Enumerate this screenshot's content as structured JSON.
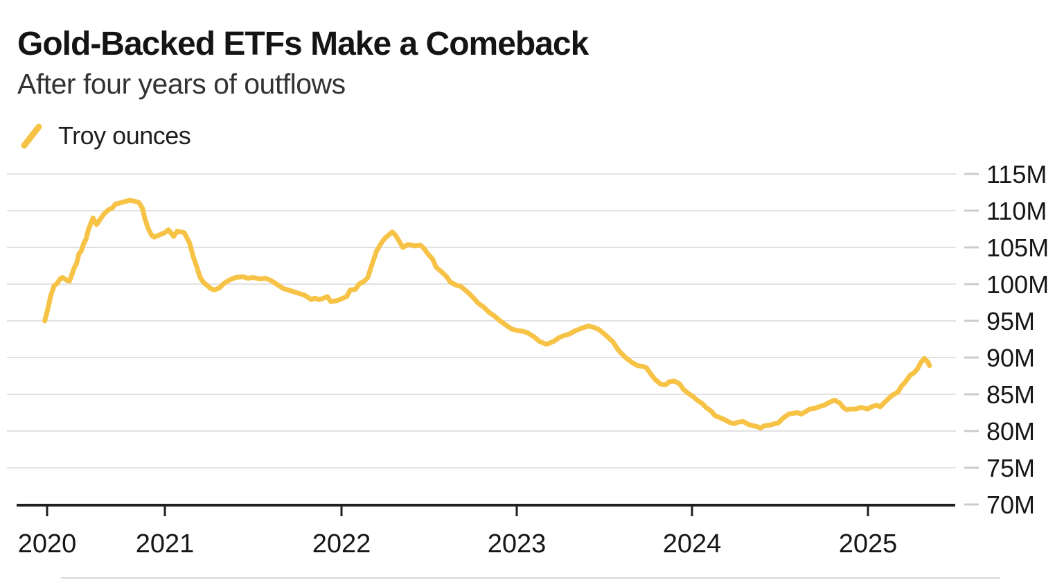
{
  "header": {
    "title": "Gold-Backed ETFs Make a Comeback",
    "subtitle": "After four years of outflows"
  },
  "legend": {
    "label": "Troy ounces",
    "swatch_color": "#F7C347"
  },
  "colors": {
    "line": "#F7C347",
    "grid": "#E2E2E2",
    "tick_dash": "#CCCCCC",
    "axis": "#1F1F1F",
    "text": "#161616"
  },
  "chart_data": {
    "type": "line",
    "title": "Gold-Backed ETFs Make a Comeback",
    "subtitle": "After four years of outflows",
    "xlabel": "",
    "ylabel": "",
    "y_unit_suffix": "M",
    "ylim": [
      70,
      115
    ],
    "y_ticks": [
      70,
      75,
      80,
      85,
      90,
      95,
      100,
      105,
      110,
      115
    ],
    "x_ticks": [
      2020,
      2021,
      2022,
      2023,
      2024,
      2025
    ],
    "grid": "horizontal",
    "legend_position": "top-left",
    "series": [
      {
        "name": "Troy ounces",
        "color": "#F7C347",
        "points": [
          [
            2019.98,
            95.0
          ],
          [
            2020.01,
            96.9
          ],
          [
            2020.03,
            98.4
          ],
          [
            2020.06,
            99.8
          ],
          [
            2020.08,
            100.0
          ],
          [
            2020.11,
            100.7
          ],
          [
            2020.13,
            100.9
          ],
          [
            2020.17,
            100.5
          ],
          [
            2020.19,
            100.4
          ],
          [
            2020.21,
            101.3
          ],
          [
            2020.23,
            102.2
          ],
          [
            2020.25,
            102.8
          ],
          [
            2020.27,
            104.1
          ],
          [
            2020.29,
            104.5
          ],
          [
            2020.31,
            105.5
          ],
          [
            2020.33,
            106.1
          ],
          [
            2020.35,
            107.4
          ],
          [
            2020.37,
            108.2
          ],
          [
            2020.39,
            109.0
          ],
          [
            2020.42,
            108.1
          ],
          [
            2020.45,
            108.8
          ],
          [
            2020.48,
            109.5
          ],
          [
            2020.52,
            110.1
          ],
          [
            2020.55,
            110.3
          ],
          [
            2020.58,
            110.9
          ],
          [
            2020.61,
            111.0
          ],
          [
            2020.65,
            111.2
          ],
          [
            2020.7,
            111.4
          ],
          [
            2020.74,
            111.3
          ],
          [
            2020.78,
            111.1
          ],
          [
            2020.81,
            110.3
          ],
          [
            2020.83,
            108.9
          ],
          [
            2020.86,
            107.5
          ],
          [
            2020.89,
            106.6
          ],
          [
            2020.91,
            106.4
          ],
          [
            2020.94,
            106.6
          ],
          [
            2020.97,
            106.8
          ],
          [
            2021.0,
            107.0
          ],
          [
            2021.02,
            107.4
          ],
          [
            2021.05,
            106.5
          ],
          [
            2021.07,
            107.2
          ],
          [
            2021.09,
            107.1
          ],
          [
            2021.11,
            107.0
          ],
          [
            2021.14,
            105.6
          ],
          [
            2021.16,
            103.8
          ],
          [
            2021.18,
            102.4
          ],
          [
            2021.2,
            100.9
          ],
          [
            2021.22,
            100.2
          ],
          [
            2021.24,
            99.8
          ],
          [
            2021.26,
            99.4
          ],
          [
            2021.28,
            99.2
          ],
          [
            2021.31,
            99.5
          ],
          [
            2021.33,
            100.0
          ],
          [
            2021.36,
            100.5
          ],
          [
            2021.4,
            100.9
          ],
          [
            2021.44,
            101.0
          ],
          [
            2021.47,
            100.8
          ],
          [
            2021.5,
            100.9
          ],
          [
            2021.54,
            100.7
          ],
          [
            2021.57,
            100.8
          ],
          [
            2021.6,
            100.5
          ],
          [
            2021.64,
            99.9
          ],
          [
            2021.67,
            99.4
          ],
          [
            2021.71,
            99.1
          ],
          [
            2021.75,
            98.8
          ],
          [
            2021.79,
            98.5
          ],
          [
            2021.83,
            97.9
          ],
          [
            2021.85,
            98.1
          ],
          [
            2021.87,
            97.9
          ],
          [
            2021.89,
            98.0
          ],
          [
            2021.92,
            98.3
          ],
          [
            2021.94,
            97.6
          ],
          [
            2021.96,
            97.7
          ],
          [
            2021.98,
            97.8
          ],
          [
            2022.0,
            98.0
          ],
          [
            2022.03,
            98.3
          ],
          [
            2022.05,
            99.2
          ],
          [
            2022.08,
            99.3
          ],
          [
            2022.1,
            100.0
          ],
          [
            2022.13,
            100.4
          ],
          [
            2022.15,
            100.9
          ],
          [
            2022.17,
            102.4
          ],
          [
            2022.2,
            104.5
          ],
          [
            2022.23,
            105.7
          ],
          [
            2022.25,
            106.3
          ],
          [
            2022.27,
            106.7
          ],
          [
            2022.29,
            107.1
          ],
          [
            2022.31,
            106.6
          ],
          [
            2022.33,
            105.8
          ],
          [
            2022.35,
            105.0
          ],
          [
            2022.38,
            105.4
          ],
          [
            2022.4,
            105.3
          ],
          [
            2022.42,
            105.2
          ],
          [
            2022.45,
            105.3
          ],
          [
            2022.47,
            104.9
          ],
          [
            2022.49,
            104.2
          ],
          [
            2022.52,
            103.4
          ],
          [
            2022.54,
            102.3
          ],
          [
            2022.57,
            101.7
          ],
          [
            2022.6,
            101.0
          ],
          [
            2022.62,
            100.3
          ],
          [
            2022.65,
            99.9
          ],
          [
            2022.68,
            99.7
          ],
          [
            2022.72,
            98.9
          ],
          [
            2022.75,
            98.2
          ],
          [
            2022.78,
            97.4
          ],
          [
            2022.81,
            96.9
          ],
          [
            2022.84,
            96.2
          ],
          [
            2022.87,
            95.7
          ],
          [
            2022.91,
            94.9
          ],
          [
            2022.94,
            94.4
          ],
          [
            2022.97,
            93.9
          ],
          [
            2023.0,
            93.7
          ],
          [
            2023.03,
            93.6
          ],
          [
            2023.06,
            93.4
          ],
          [
            2023.1,
            92.8
          ],
          [
            2023.13,
            92.2
          ],
          [
            2023.17,
            91.8
          ],
          [
            2023.21,
            92.2
          ],
          [
            2023.24,
            92.7
          ],
          [
            2023.27,
            93.0
          ],
          [
            2023.3,
            93.2
          ],
          [
            2023.33,
            93.6
          ],
          [
            2023.37,
            94.0
          ],
          [
            2023.41,
            94.3
          ],
          [
            2023.44,
            94.1
          ],
          [
            2023.47,
            93.8
          ],
          [
            2023.51,
            93.0
          ],
          [
            2023.55,
            92.1
          ],
          [
            2023.58,
            91.0
          ],
          [
            2023.62,
            90.0
          ],
          [
            2023.66,
            89.3
          ],
          [
            2023.69,
            88.9
          ],
          [
            2023.72,
            88.8
          ],
          [
            2023.74,
            88.6
          ],
          [
            2023.77,
            87.6
          ],
          [
            2023.79,
            87.0
          ],
          [
            2023.82,
            86.4
          ],
          [
            2023.85,
            86.3
          ],
          [
            2023.87,
            86.7
          ],
          [
            2023.9,
            86.8
          ],
          [
            2023.93,
            86.4
          ],
          [
            2023.95,
            85.7
          ],
          [
            2023.98,
            85.1
          ],
          [
            2024.0,
            84.8
          ],
          [
            2024.03,
            84.2
          ],
          [
            2024.06,
            83.7
          ],
          [
            2024.08,
            83.2
          ],
          [
            2024.11,
            82.7
          ],
          [
            2024.13,
            82.1
          ],
          [
            2024.16,
            81.8
          ],
          [
            2024.19,
            81.5
          ],
          [
            2024.21,
            81.2
          ],
          [
            2024.24,
            81.0
          ],
          [
            2024.26,
            81.2
          ],
          [
            2024.29,
            81.3
          ],
          [
            2024.32,
            80.9
          ],
          [
            2024.35,
            80.7
          ],
          [
            2024.37,
            80.6
          ],
          [
            2024.39,
            80.4
          ],
          [
            2024.41,
            80.7
          ],
          [
            2024.44,
            80.8
          ],
          [
            2024.47,
            81.0
          ],
          [
            2024.49,
            81.1
          ],
          [
            2024.52,
            81.8
          ],
          [
            2024.55,
            82.3
          ],
          [
            2024.57,
            82.4
          ],
          [
            2024.6,
            82.5
          ],
          [
            2024.62,
            82.3
          ],
          [
            2024.65,
            82.7
          ],
          [
            2024.67,
            83.0
          ],
          [
            2024.7,
            83.1
          ],
          [
            2024.72,
            83.3
          ],
          [
            2024.75,
            83.5
          ],
          [
            2024.78,
            83.9
          ],
          [
            2024.81,
            84.2
          ],
          [
            2024.84,
            83.8
          ],
          [
            2024.86,
            83.2
          ],
          [
            2024.88,
            82.9
          ],
          [
            2024.9,
            83.0
          ],
          [
            2024.93,
            83.0
          ],
          [
            2024.96,
            83.2
          ],
          [
            2024.98,
            83.1
          ],
          [
            2025.0,
            83.0
          ],
          [
            2025.02,
            83.3
          ],
          [
            2025.05,
            83.5
          ],
          [
            2025.07,
            83.3
          ],
          [
            2025.09,
            83.8
          ],
          [
            2025.12,
            84.5
          ],
          [
            2025.14,
            84.9
          ],
          [
            2025.17,
            85.3
          ],
          [
            2025.19,
            86.1
          ],
          [
            2025.21,
            86.6
          ],
          [
            2025.24,
            87.6
          ],
          [
            2025.26,
            87.9
          ],
          [
            2025.28,
            88.4
          ],
          [
            2025.3,
            89.3
          ],
          [
            2025.32,
            89.9
          ],
          [
            2025.34,
            89.4
          ],
          [
            2025.35,
            88.9
          ]
        ]
      }
    ]
  }
}
